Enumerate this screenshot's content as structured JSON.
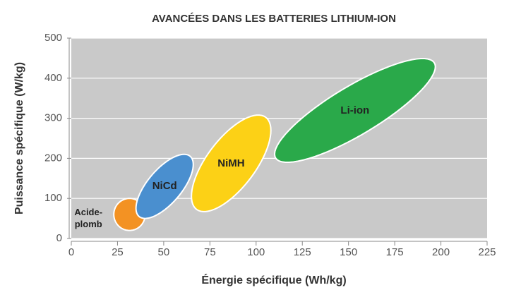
{
  "chart_data": {
    "type": "region",
    "title": "AVANCÉES DANS LES BATTERIES LITHIUM-ION",
    "x_label": "Énergie spécifique (Wh/kg)",
    "y_label": "Puissance spécifique (W/kg)",
    "xlim": [
      0,
      225
    ],
    "xticks": [
      0,
      25,
      50,
      75,
      100,
      125,
      150,
      175,
      200,
      225
    ],
    "ylim": [
      0,
      500
    ],
    "yticks": [
      0,
      100,
      200,
      300,
      400,
      500
    ],
    "grid": true,
    "regions": [
      {
        "name": "Acide-plomb",
        "color": "#f39223",
        "x": [
          23,
          40
        ],
        "y": [
          20,
          100
        ],
        "tilt": 0,
        "label_side": "left"
      },
      {
        "name": "NiCd",
        "color": "#4a8fcf",
        "x": [
          35,
          66
        ],
        "y": [
          50,
          210
        ],
        "tilt": 0.75,
        "label_side": "center"
      },
      {
        "name": "NiMH",
        "color": "#fcd116",
        "x": [
          65,
          108
        ],
        "y": [
          67,
          308
        ],
        "tilt": 0.75,
        "label_side": "center"
      },
      {
        "name": "Li-ion",
        "color": "#2aa94a",
        "x": [
          110,
          197
        ],
        "y": [
          190,
          449
        ],
        "tilt": 1.0,
        "label_side": "center"
      }
    ]
  }
}
